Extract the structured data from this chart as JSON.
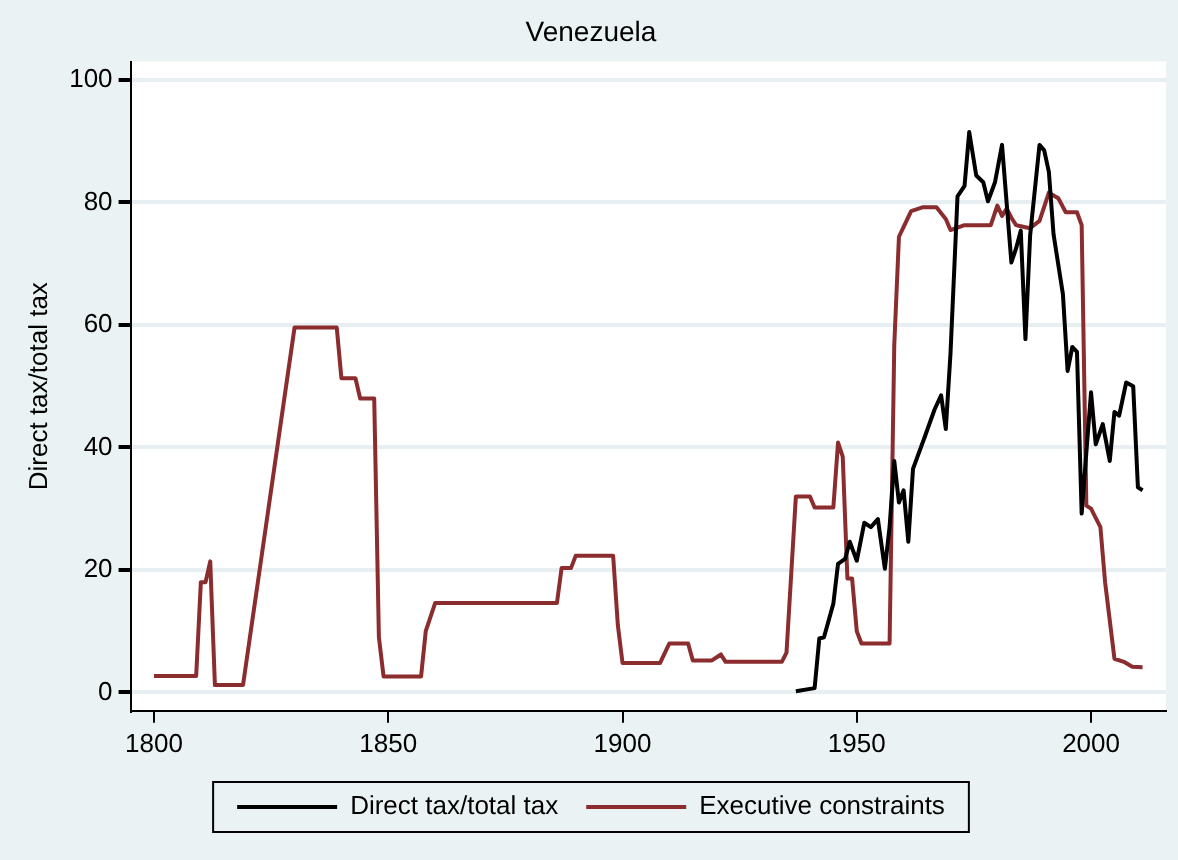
{
  "chart_data": {
    "type": "line",
    "title": "Venezuela",
    "ylabel": "Direct tax/total tax",
    "xlim": [
      1795,
      2016
    ],
    "xticks": [
      1800,
      1850,
      1900,
      1950,
      2000
    ],
    "ylim": [
      -3,
      103
    ],
    "yticks": [
      0,
      20,
      40,
      60,
      80,
      100
    ],
    "grid": "y",
    "legend": "bottom",
    "marker": "none",
    "line_style": "solid",
    "series": [
      {
        "name": "Direct tax/total tax",
        "color": "#000000",
        "x": [
          1937,
          1941,
          1942,
          1943,
          1945,
          1946,
          1947.5,
          1948.5,
          1950,
          1951.6,
          1953,
          1954.5,
          1956,
          1957,
          1958,
          1959,
          1960,
          1961,
          1962,
          1964.5,
          1966.6,
          1968,
          1969,
          1970,
          1971.5,
          1973,
          1974,
          1975.5,
          1977,
          1978,
          1979.5,
          1981,
          1983,
          1984,
          1985,
          1986,
          1987,
          1989,
          1990,
          1991,
          1992,
          1994,
          1995,
          1996,
          1997,
          1998,
          1999,
          2000,
          2001,
          2002.5,
          2004,
          2005,
          2006,
          2007.5,
          2009,
          2010,
          2011
        ],
        "values": [
          0.2,
          0.7,
          8.8,
          9,
          14.5,
          21,
          21.8,
          24.6,
          21.5,
          27.7,
          27,
          28.3,
          20.2,
          27,
          37.8,
          31,
          33,
          24.6,
          36.5,
          41.7,
          46.2,
          48.5,
          43,
          55.3,
          81,
          82.7,
          91.5,
          84.4,
          83.3,
          80.2,
          83.3,
          89.4,
          70.2,
          72.5,
          75.4,
          57.7,
          74.6,
          89.4,
          88.5,
          85,
          74.8,
          65,
          52.5,
          56.4,
          55.6,
          29.2,
          39.2,
          49,
          40.5,
          43.8,
          37.8,
          45.8,
          45.2,
          50.6,
          50,
          33.5,
          33
        ]
      },
      {
        "name": "Executive constraints",
        "color": "#8b2c2f",
        "x": [
          1800,
          1809,
          1810,
          1811,
          1812,
          1813,
          1819,
          1830,
          1839,
          1840,
          1843,
          1844,
          1847,
          1848,
          1849,
          1857,
          1858,
          1860,
          1886,
          1887,
          1889,
          1890,
          1898,
          1899,
          1900,
          1908,
          1910,
          1914,
          1915,
          1919,
          1921,
          1922,
          1934,
          1935,
          1937,
          1940,
          1941,
          1945,
          1946,
          1947,
          1948,
          1949,
          1950,
          1951,
          1957,
          1958,
          1959,
          1960,
          1961.6,
          1964,
          1967,
          1969,
          1970,
          1973,
          1978.6,
          1980,
          1981,
          1982,
          1983,
          1984,
          1987,
          1989,
          1991,
          1993,
          1994.6,
          1997,
          1998,
          1999,
          2000,
          2002,
          2003,
          2005,
          2007,
          2008.8,
          2011
        ],
        "values": [
          2.7,
          2.7,
          18,
          18,
          21.4,
          1.2,
          1.2,
          59.6,
          59.6,
          51.3,
          51.3,
          48,
          48,
          9,
          2.6,
          2.6,
          10,
          14.6,
          14.6,
          20.3,
          20.3,
          22.3,
          22.3,
          11,
          4.8,
          4.8,
          8,
          8,
          5.2,
          5.2,
          6.2,
          5,
          5,
          6.5,
          32,
          32,
          30.2,
          30.2,
          40.8,
          38.5,
          18.6,
          18.6,
          10,
          8,
          8,
          56.7,
          74.4,
          76,
          78.6,
          79.2,
          79.2,
          77.3,
          75.5,
          76.3,
          76.3,
          79.5,
          77.8,
          79,
          77.5,
          76.3,
          75.8,
          77,
          81.6,
          80.7,
          78.4,
          78.4,
          76.3,
          30.5,
          30,
          27,
          18,
          5.5,
          5,
          4.2,
          4.1
        ]
      }
    ]
  }
}
